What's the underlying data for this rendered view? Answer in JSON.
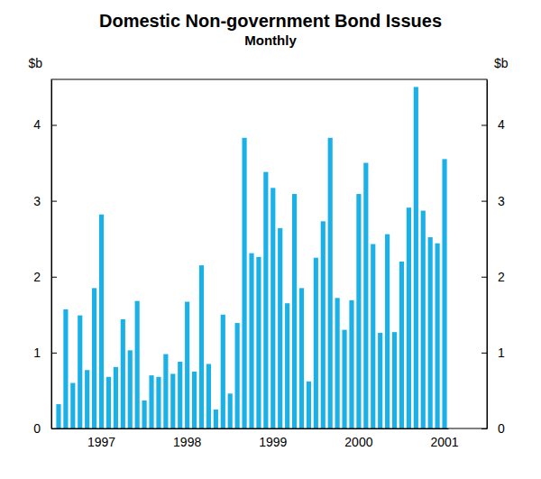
{
  "chart_data": {
    "type": "bar",
    "title": "Domestic Non-government Bond Issues",
    "subtitle": "Monthly",
    "y_label": "$b",
    "categories": [
      null,
      null,
      null,
      null,
      null,
      null,
      "1997",
      null,
      null,
      null,
      null,
      null,
      null,
      null,
      null,
      null,
      null,
      null,
      "1998",
      null,
      null,
      null,
      null,
      null,
      null,
      null,
      null,
      null,
      null,
      null,
      "1999",
      null,
      null,
      null,
      null,
      null,
      null,
      null,
      null,
      null,
      null,
      null,
      "2000",
      null,
      null,
      null,
      null,
      null,
      null,
      null,
      null,
      null,
      null,
      null,
      "2001"
    ],
    "values": [
      0.32,
      1.57,
      0.6,
      1.49,
      0.77,
      1.85,
      2.82,
      0.68,
      0.81,
      1.44,
      1.03,
      1.68,
      0.37,
      0.7,
      0.68,
      0.98,
      0.72,
      0.88,
      1.67,
      0.75,
      2.15,
      0.85,
      0.25,
      1.5,
      0.46,
      1.39,
      3.83,
      2.31,
      2.26,
      3.38,
      3.17,
      2.64,
      1.65,
      3.09,
      1.85,
      0.62,
      2.25,
      2.73,
      3.83,
      1.72,
      1.3,
      1.69,
      3.09,
      3.5,
      2.43,
      1.26,
      2.56,
      1.27,
      2.2,
      2.91,
      4.5,
      2.87,
      2.52,
      2.44,
      3.55
    ],
    "color": "#1ab0e8",
    "ylim": [
      0,
      4.6
    ],
    "yticks": [
      0,
      1,
      2,
      3,
      4
    ],
    "grid": false
  }
}
